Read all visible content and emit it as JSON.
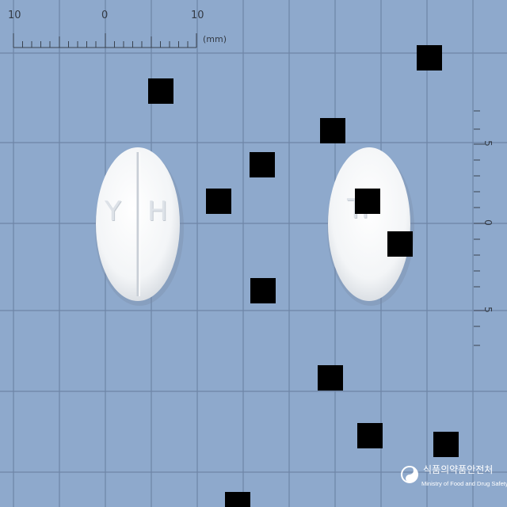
{
  "ruler": {
    "top_labels": [
      "10",
      "0",
      "10"
    ],
    "unit": "(mm)",
    "side_labels": [
      "5",
      "0",
      "5"
    ]
  },
  "tablets": [
    {
      "imprint_left": "Y",
      "imprint_right": "H",
      "color": "#f6f7f8"
    },
    {
      "imprint": "TF",
      "color": "#f6f7f8"
    }
  ],
  "logo": {
    "korean": "식품의약품안전처",
    "english": "Ministry of Food and Drug Safety"
  },
  "colors": {
    "background": "#8ea9cc",
    "grid_line": "#5f7596",
    "marker": "#000000"
  }
}
